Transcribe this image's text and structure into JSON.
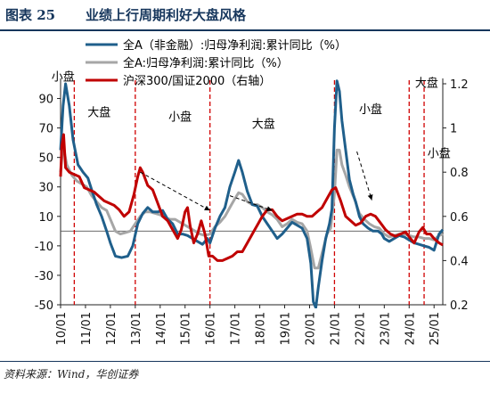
{
  "figure": {
    "number": "图表 25",
    "title": "业绩上行周期利好大盘风格",
    "source": "资料来源：Wind，华创证券"
  },
  "chart_data": {
    "type": "line",
    "title": "业绩上行周期利好大盘风格",
    "x_ticks": [
      "10/01",
      "11/01",
      "12/01",
      "13/01",
      "14/01",
      "15/01",
      "16/01",
      "17/01",
      "18/01",
      "19/01",
      "20/01",
      "21/01",
      "22/01",
      "23/01",
      "24/01",
      "25/01"
    ],
    "y_left": {
      "ticks": [
        90,
        70,
        50,
        30,
        10,
        -10,
        -30,
        -50
      ],
      "lim": [
        -50,
        100
      ]
    },
    "y_right": {
      "ticks": [
        "1.2",
        "1",
        "0.8",
        "0.6",
        "0.4",
        "0.2"
      ],
      "lim": [
        0.2,
        1.2
      ]
    },
    "grid": false,
    "legend_position": "top-left",
    "series": [
      {
        "name": "全A（非金融）:归母净利润:累计同比（%）",
        "axis": "left",
        "color": "#1f5f8b",
        "points": [
          [
            2010.0,
            55
          ],
          [
            2010.1,
            85
          ],
          [
            2010.2,
            100
          ],
          [
            2010.35,
            85
          ],
          [
            2010.5,
            62
          ],
          [
            2010.7,
            45
          ],
          [
            2010.9,
            40
          ],
          [
            2011.1,
            36
          ],
          [
            2011.25,
            28
          ],
          [
            2011.45,
            18
          ],
          [
            2011.65,
            10
          ],
          [
            2011.85,
            0
          ],
          [
            2012.0,
            -8
          ],
          [
            2012.2,
            -17
          ],
          [
            2012.45,
            -18
          ],
          [
            2012.7,
            -17
          ],
          [
            2012.9,
            -10
          ],
          [
            2013.1,
            5
          ],
          [
            2013.3,
            12
          ],
          [
            2013.5,
            16
          ],
          [
            2013.7,
            13
          ],
          [
            2013.9,
            13
          ],
          [
            2014.1,
            14
          ],
          [
            2014.3,
            8
          ],
          [
            2014.5,
            5
          ],
          [
            2014.7,
            -2
          ],
          [
            2014.9,
            -2
          ],
          [
            2015.1,
            -3
          ],
          [
            2015.3,
            -5
          ],
          [
            2015.5,
            -7
          ],
          [
            2015.7,
            -9
          ],
          [
            2015.9,
            -5
          ],
          [
            2016.0,
            -8
          ],
          [
            2016.2,
            2
          ],
          [
            2016.4,
            10
          ],
          [
            2016.6,
            16
          ],
          [
            2016.8,
            30
          ],
          [
            2017.0,
            40
          ],
          [
            2017.15,
            48
          ],
          [
            2017.3,
            40
          ],
          [
            2017.5,
            27
          ],
          [
            2017.7,
            18
          ],
          [
            2017.9,
            17
          ],
          [
            2018.1,
            10
          ],
          [
            2018.3,
            5
          ],
          [
            2018.5,
            0
          ],
          [
            2018.7,
            -5
          ],
          [
            2018.9,
            -2
          ],
          [
            2019.1,
            2
          ],
          [
            2019.3,
            6
          ],
          [
            2019.5,
            4
          ],
          [
            2019.7,
            2
          ],
          [
            2019.9,
            -5
          ],
          [
            2020.05,
            -22
          ],
          [
            2020.15,
            -48
          ],
          [
            2020.25,
            -52
          ],
          [
            2020.35,
            -38
          ],
          [
            2020.5,
            -20
          ],
          [
            2020.65,
            -5
          ],
          [
            2020.8,
            5
          ],
          [
            2020.9,
            15
          ],
          [
            2021.0,
            70
          ],
          [
            2021.1,
            102
          ],
          [
            2021.2,
            95
          ],
          [
            2021.3,
            75
          ],
          [
            2021.45,
            55
          ],
          [
            2021.6,
            35
          ],
          [
            2021.75,
            25
          ],
          [
            2021.85,
            20
          ],
          [
            2022.0,
            10
          ],
          [
            2022.15,
            5
          ],
          [
            2022.35,
            2
          ],
          [
            2022.55,
            0
          ],
          [
            2022.75,
            0
          ],
          [
            2022.9,
            -2
          ],
          [
            2023.0,
            -5
          ],
          [
            2023.2,
            -7
          ],
          [
            2023.4,
            -5
          ],
          [
            2023.6,
            -3
          ],
          [
            2023.8,
            -4
          ],
          [
            2024.0,
            -6
          ],
          [
            2024.2,
            -8
          ],
          [
            2024.4,
            -9
          ],
          [
            2024.6,
            -10
          ],
          [
            2024.8,
            -11
          ],
          [
            2025.0,
            -13
          ],
          [
            2025.2,
            -2
          ],
          [
            2025.35,
            1
          ]
        ]
      },
      {
        "name": "全A:归母净利润:累计同比（%）",
        "axis": "left",
        "color": "#a6a6a6",
        "points": [
          [
            2010.0,
            40
          ],
          [
            2010.1,
            58
          ],
          [
            2010.25,
            45
          ],
          [
            2010.45,
            38
          ],
          [
            2010.65,
            34
          ],
          [
            2010.85,
            32
          ],
          [
            2011.05,
            30
          ],
          [
            2011.25,
            24
          ],
          [
            2011.45,
            20
          ],
          [
            2011.65,
            16
          ],
          [
            2011.85,
            14
          ],
          [
            2012.0,
            8
          ],
          [
            2012.2,
            0
          ],
          [
            2012.4,
            -2
          ],
          [
            2012.6,
            -1
          ],
          [
            2012.8,
            0
          ],
          [
            2013.0,
            5
          ],
          [
            2013.2,
            10
          ],
          [
            2013.4,
            13
          ],
          [
            2013.6,
            13
          ],
          [
            2013.8,
            12
          ],
          [
            2014.0,
            11
          ],
          [
            2014.2,
            9
          ],
          [
            2014.4,
            8
          ],
          [
            2014.6,
            8
          ],
          [
            2014.8,
            6
          ],
          [
            2015.0,
            4
          ],
          [
            2015.2,
            2
          ],
          [
            2015.4,
            0
          ],
          [
            2015.6,
            -2
          ],
          [
            2015.8,
            -3
          ],
          [
            2016.0,
            -2
          ],
          [
            2016.2,
            3
          ],
          [
            2016.4,
            6
          ],
          [
            2016.6,
            10
          ],
          [
            2016.8,
            16
          ],
          [
            2017.0,
            22
          ],
          [
            2017.15,
            26
          ],
          [
            2017.3,
            25
          ],
          [
            2017.5,
            20
          ],
          [
            2017.7,
            18
          ],
          [
            2017.9,
            18
          ],
          [
            2018.1,
            16
          ],
          [
            2018.3,
            13
          ],
          [
            2018.5,
            11
          ],
          [
            2018.7,
            8
          ],
          [
            2018.9,
            3
          ],
          [
            2019.1,
            5
          ],
          [
            2019.3,
            8
          ],
          [
            2019.5,
            6
          ],
          [
            2019.7,
            5
          ],
          [
            2019.9,
            0
          ],
          [
            2020.05,
            -12
          ],
          [
            2020.2,
            -25
          ],
          [
            2020.35,
            -25
          ],
          [
            2020.5,
            -15
          ],
          [
            2020.7,
            -2
          ],
          [
            2020.85,
            2
          ],
          [
            2021.0,
            25
          ],
          [
            2021.1,
            55
          ],
          [
            2021.2,
            55
          ],
          [
            2021.3,
            45
          ],
          [
            2021.45,
            38
          ],
          [
            2021.6,
            30
          ],
          [
            2021.8,
            22
          ],
          [
            2022.0,
            12
          ],
          [
            2022.2,
            8
          ],
          [
            2022.4,
            5
          ],
          [
            2022.6,
            3
          ],
          [
            2022.8,
            2
          ],
          [
            2023.0,
            -2
          ],
          [
            2023.2,
            -4
          ],
          [
            2023.4,
            -3
          ],
          [
            2023.6,
            -2
          ],
          [
            2023.8,
            -2
          ],
          [
            2024.0,
            -3
          ],
          [
            2024.2,
            -4
          ],
          [
            2024.4,
            -4
          ],
          [
            2024.6,
            -5
          ],
          [
            2024.8,
            -5
          ],
          [
            2025.0,
            -6
          ],
          [
            2025.2,
            -3
          ],
          [
            2025.35,
            -2
          ]
        ]
      },
      {
        "name": "沪深300/国证2000（右轴）",
        "axis": "right",
        "color": "#c00000",
        "points": [
          [
            2010.0,
            0.78
          ],
          [
            2010.05,
            0.92
          ],
          [
            2010.12,
            0.97
          ],
          [
            2010.2,
            0.82
          ],
          [
            2010.35,
            0.8
          ],
          [
            2010.55,
            0.79
          ],
          [
            2010.75,
            0.78
          ],
          [
            2010.95,
            0.73
          ],
          [
            2011.15,
            0.72
          ],
          [
            2011.35,
            0.71
          ],
          [
            2011.55,
            0.69
          ],
          [
            2011.75,
            0.67
          ],
          [
            2011.95,
            0.66
          ],
          [
            2012.15,
            0.65
          ],
          [
            2012.35,
            0.63
          ],
          [
            2012.55,
            0.6
          ],
          [
            2012.75,
            0.62
          ],
          [
            2012.95,
            0.7
          ],
          [
            2013.1,
            0.78
          ],
          [
            2013.2,
            0.82
          ],
          [
            2013.3,
            0.8
          ],
          [
            2013.5,
            0.74
          ],
          [
            2013.7,
            0.72
          ],
          [
            2013.9,
            0.66
          ],
          [
            2014.1,
            0.6
          ],
          [
            2014.3,
            0.58
          ],
          [
            2014.5,
            0.54
          ],
          [
            2014.7,
            0.5
          ],
          [
            2014.85,
            0.54
          ],
          [
            2015.0,
            0.62
          ],
          [
            2015.1,
            0.64
          ],
          [
            2015.2,
            0.56
          ],
          [
            2015.35,
            0.48
          ],
          [
            2015.5,
            0.52
          ],
          [
            2015.65,
            0.58
          ],
          [
            2015.8,
            0.52
          ],
          [
            2015.95,
            0.42
          ],
          [
            2016.1,
            0.42
          ],
          [
            2016.3,
            0.4
          ],
          [
            2016.5,
            0.4
          ],
          [
            2016.7,
            0.41
          ],
          [
            2016.9,
            0.42
          ],
          [
            2017.1,
            0.44
          ],
          [
            2017.3,
            0.44
          ],
          [
            2017.5,
            0.48
          ],
          [
            2017.7,
            0.52
          ],
          [
            2017.9,
            0.56
          ],
          [
            2018.1,
            0.6
          ],
          [
            2018.3,
            0.63
          ],
          [
            2018.5,
            0.63
          ],
          [
            2018.7,
            0.6
          ],
          [
            2018.9,
            0.58
          ],
          [
            2019.1,
            0.59
          ],
          [
            2019.3,
            0.6
          ],
          [
            2019.5,
            0.61
          ],
          [
            2019.7,
            0.61
          ],
          [
            2019.9,
            0.6
          ],
          [
            2020.1,
            0.6
          ],
          [
            2020.3,
            0.62
          ],
          [
            2020.5,
            0.64
          ],
          [
            2020.7,
            0.68
          ],
          [
            2020.9,
            0.72
          ],
          [
            2021.05,
            0.73
          ],
          [
            2021.25,
            0.67
          ],
          [
            2021.45,
            0.6
          ],
          [
            2021.65,
            0.58
          ],
          [
            2021.85,
            0.56
          ],
          [
            2022.05,
            0.57
          ],
          [
            2022.25,
            0.6
          ],
          [
            2022.45,
            0.61
          ],
          [
            2022.65,
            0.6
          ],
          [
            2022.85,
            0.57
          ],
          [
            2023.05,
            0.54
          ],
          [
            2023.25,
            0.52
          ],
          [
            2023.45,
            0.51
          ],
          [
            2023.65,
            0.52
          ],
          [
            2023.85,
            0.53
          ],
          [
            2024.05,
            0.5
          ],
          [
            2024.2,
            0.48
          ],
          [
            2024.4,
            0.53
          ],
          [
            2024.55,
            0.55
          ],
          [
            2024.7,
            0.52
          ],
          [
            2024.85,
            0.52
          ],
          [
            2025.0,
            0.5
          ],
          [
            2025.2,
            0.48
          ],
          [
            2025.35,
            0.47
          ]
        ]
      }
    ],
    "annotations": [
      {
        "text": "小盘",
        "x": 2010.1,
        "y": 102
      },
      {
        "text": "大盘",
        "x": 2011.55,
        "y": 78
      },
      {
        "text": "小盘",
        "x": 2014.8,
        "y": 75
      },
      {
        "text": "大盘",
        "x": 2018.15,
        "y": 70
      },
      {
        "text": "小盘",
        "x": 2022.45,
        "y": 80
      },
      {
        "text": "大盘",
        "x": 2024.7,
        "y": 98
      },
      {
        "text": "小盘",
        "x": 2025.2,
        "y": 50
      }
    ],
    "regime_dividers": [
      2010.55,
      2013.0,
      2016.0,
      2021.0,
      2024.0,
      2024.6
    ],
    "trend_arrows": [
      {
        "from": [
          2013.2,
          40
        ],
        "to": [
          2016.0,
          14
        ]
      },
      {
        "from": [
          2016.8,
          24
        ],
        "to": [
          2018.5,
          14
        ]
      },
      {
        "from": [
          2021.9,
          54
        ],
        "to": [
          2022.5,
          21
        ]
      }
    ]
  }
}
